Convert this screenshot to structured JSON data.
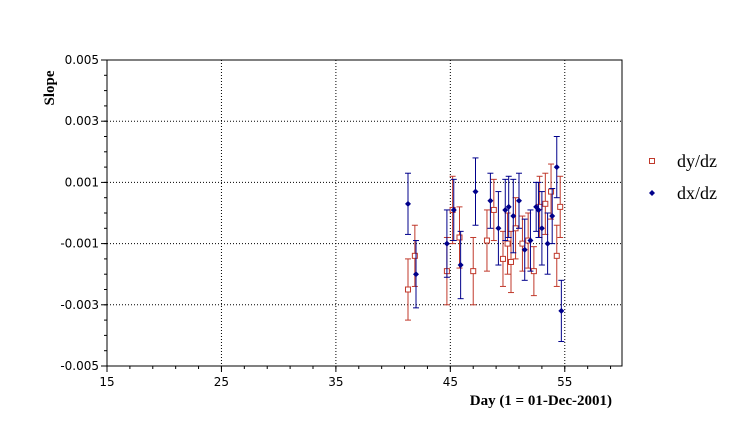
{
  "chart_data": {
    "type": "scatter",
    "xlabel": "Day (1 = 01-Dec-2001)",
    "ylabel": "Slope",
    "xlim": [
      15,
      60
    ],
    "ylim": [
      -0.005,
      0.005
    ],
    "x_ticks": [
      15,
      25,
      35,
      45,
      55
    ],
    "y_ticks": [
      -0.005,
      -0.003,
      -0.001,
      0.001,
      0.003,
      0.005
    ],
    "y_tick_labels": [
      "-0.005",
      "-0.003",
      "-0.001",
      "0.001",
      "0.003",
      "0.005"
    ],
    "grid": true,
    "legend_position": "right",
    "series": [
      {
        "name": "dy/dz",
        "color": "#c0392b",
        "marker": "open-square",
        "x": [
          41.3,
          41.9,
          44.7,
          45.2,
          45.8,
          47.0,
          48.2,
          48.8,
          49.6,
          50.0,
          50.3,
          50.7,
          51.3,
          51.8,
          52.3,
          52.8,
          53.3,
          53.8,
          54.3,
          54.6
        ],
        "y": [
          -0.0025,
          -0.0014,
          -0.0019,
          0.0001,
          -0.0008,
          -0.0019,
          -0.0009,
          0.0001,
          -0.0015,
          -0.001,
          -0.0016,
          -0.0005,
          -0.001,
          -0.0009,
          -0.0019,
          0.0002,
          0.0003,
          0.0007,
          -0.0014,
          0.0002
        ],
        "err": [
          0.001,
          0.001,
          0.0011,
          0.0011,
          0.001,
          0.0011,
          0.001,
          0.001,
          0.0009,
          0.001,
          0.001,
          0.001,
          0.0009,
          0.0009,
          0.0008,
          0.001,
          0.001,
          0.0009,
          0.001,
          0.001
        ]
      },
      {
        "name": "dx/dz",
        "color": "#00008b",
        "marker": "filled-diamond",
        "x": [
          41.3,
          42.0,
          44.7,
          45.3,
          45.9,
          47.2,
          48.5,
          49.2,
          49.8,
          50.1,
          50.5,
          51.0,
          51.5,
          52.0,
          52.5,
          52.7,
          53.0,
          53.5,
          53.9,
          54.3,
          54.7
        ],
        "y": [
          0.0003,
          -0.002,
          -0.001,
          0.0001,
          -0.0017,
          0.0007,
          0.0004,
          -0.0005,
          0.0001,
          0.0002,
          -0.0001,
          0.0004,
          -0.0012,
          -0.0009,
          0.0002,
          0.0001,
          -0.0005,
          -0.001,
          -0.0001,
          0.0015,
          -0.0032
        ],
        "err": [
          0.001,
          0.0011,
          0.0011,
          0.001,
          0.0011,
          0.0011,
          0.0009,
          0.0012,
          0.001,
          0.001,
          0.0012,
          0.0009,
          0.001,
          0.001,
          0.0008,
          0.0009,
          0.0012,
          0.001,
          0.0009,
          0.001,
          0.001
        ]
      }
    ]
  }
}
